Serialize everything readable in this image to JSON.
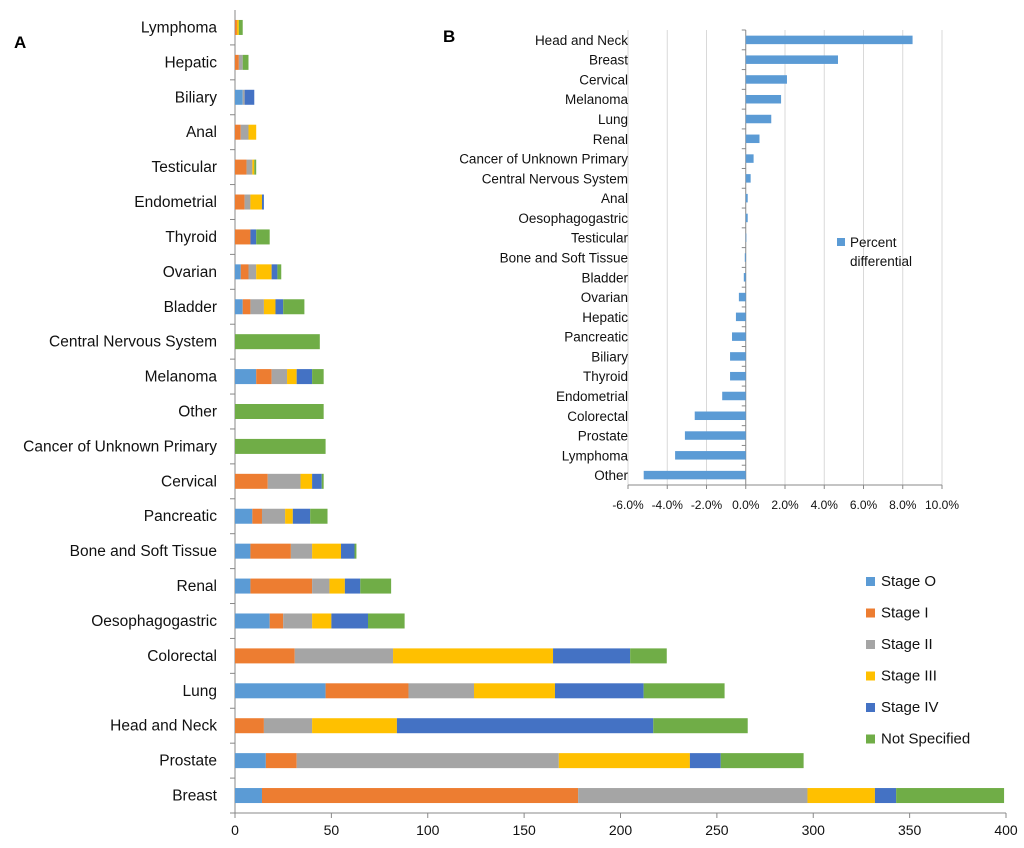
{
  "panels": {
    "a_label": "A",
    "b_label": "B"
  },
  "chart_data": [
    {
      "type": "bar",
      "orientation": "horizontal",
      "stacked": true,
      "categories": [
        "Breast",
        "Prostate",
        "Head and Neck",
        "Lung",
        "Colorectal",
        "Oesophagogastric",
        "Renal",
        "Bone and Soft Tissue",
        "Pancreatic",
        "Cervical",
        "Cancer of Unknown Primary",
        "Other",
        "Melanoma",
        "Central Nervous System",
        "Bladder",
        "Ovarian",
        "Thyroid",
        "Endometrial",
        "Testicular",
        "Anal",
        "Biliary",
        "Hepatic",
        "Lymphoma"
      ],
      "series": [
        {
          "name": "Stage O",
          "color": "#5B9BD5",
          "values": [
            14,
            16,
            0,
            47,
            0,
            18,
            8,
            8,
            9,
            0,
            0,
            0,
            11,
            0,
            4,
            3,
            0,
            0,
            0,
            0,
            4,
            0,
            0
          ]
        },
        {
          "name": "Stage I",
          "color": "#ED7D31",
          "values": [
            164,
            16,
            15,
            43,
            31,
            7,
            32,
            21,
            5,
            17,
            0,
            0,
            8,
            0,
            4,
            4,
            8,
            5,
            6,
            3,
            0,
            2,
            1
          ]
        },
        {
          "name": "Stage II",
          "color": "#A5A5A5",
          "values": [
            119,
            136,
            25,
            34,
            51,
            15,
            9,
            11,
            12,
            17,
            0,
            0,
            8,
            0,
            7,
            4,
            0,
            3,
            3,
            4,
            1,
            2,
            0
          ]
        },
        {
          "name": "Stage III",
          "color": "#FFC000",
          "values": [
            35,
            68,
            44,
            42,
            83,
            10,
            8,
            15,
            4,
            6,
            0,
            0,
            5,
            0,
            6,
            8,
            0,
            6,
            1,
            4,
            0,
            0,
            1
          ]
        },
        {
          "name": "Stage IV",
          "color": "#4472C4",
          "values": [
            11,
            16,
            133,
            46,
            40,
            19,
            8,
            7,
            9,
            5,
            0,
            0,
            8,
            0,
            4,
            3,
            3,
            1,
            0,
            0,
            5,
            0,
            0
          ]
        },
        {
          "name": "Not  Specified",
          "color": "#70AD47",
          "values": [
            56,
            43,
            49,
            42,
            19,
            19,
            16,
            1,
            9,
            1,
            47,
            46,
            6,
            44,
            11,
            2,
            7,
            0,
            1,
            0,
            0,
            3,
            2
          ]
        }
      ],
      "xlim": [
        0,
        400
      ],
      "xticks": [
        0,
        50,
        100,
        150,
        200,
        250,
        300,
        350,
        400
      ],
      "legend": "bottom-right"
    },
    {
      "type": "bar",
      "orientation": "horizontal",
      "categories": [
        "Head and Neck",
        "Breast",
        "Cervical",
        "Melanoma",
        "Lung",
        "Renal",
        "Cancer of Unknown Primary",
        "Central Nervous System",
        "Anal",
        "Oesophagogastric",
        "Testicular",
        "Bone and Soft Tissue",
        "Bladder",
        "Ovarian",
        "Hepatic",
        "Pancreatic",
        "Biliary",
        "Thyroid",
        "Endometrial",
        "Colorectal",
        "Prostate",
        "Lymphoma",
        "Other"
      ],
      "series": [
        {
          "name": "Percent differential",
          "color": "#5B9BD5",
          "values": [
            8.5,
            4.7,
            2.1,
            1.8,
            1.3,
            0.7,
            0.4,
            0.25,
            0.1,
            0.1,
            0.0,
            -0.05,
            -0.1,
            -0.35,
            -0.5,
            -0.7,
            -0.8,
            -0.8,
            -1.2,
            -2.6,
            -3.1,
            -3.6,
            -5.2
          ]
        }
      ],
      "xlim": [
        -6.0,
        10.0
      ],
      "xticks": [
        "-6.0%",
        "-4.0%",
        "-2.0%",
        "0.0%",
        "2.0%",
        "4.0%",
        "6.0%",
        "8.0%",
        "10.0%"
      ],
      "grid": true,
      "legend": "right"
    }
  ]
}
